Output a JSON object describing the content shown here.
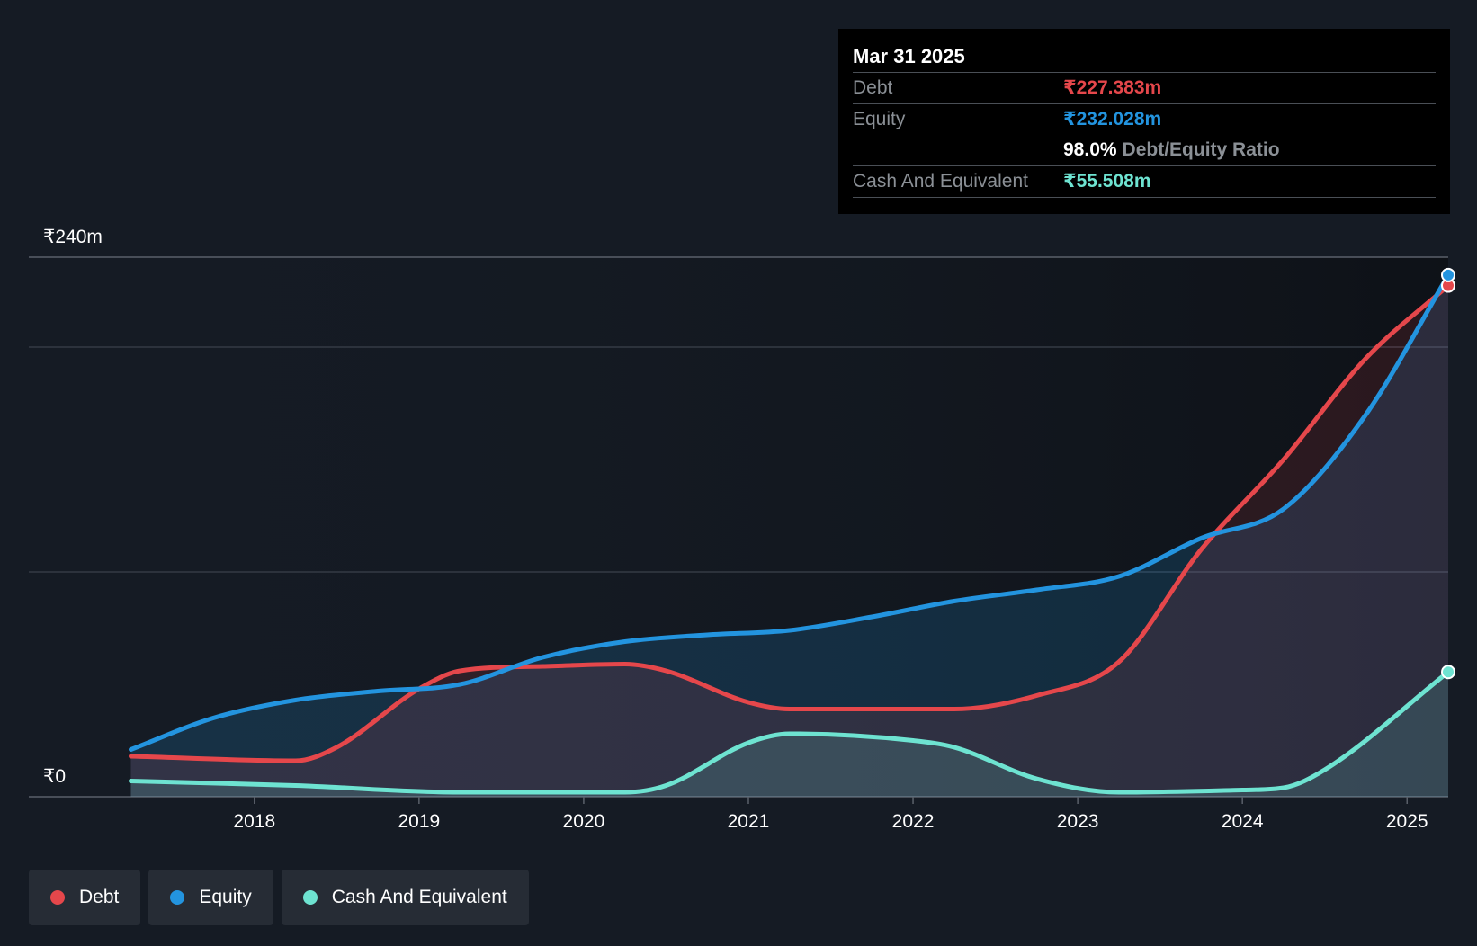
{
  "tooltip": {
    "date": "Mar 31 2025",
    "debt_label": "Debt",
    "debt_value": "₹227.383m",
    "equity_label": "Equity",
    "equity_value": "₹232.028m",
    "ratio_value": "98.0%",
    "ratio_label": "Debt/Equity Ratio",
    "cash_label": "Cash And Equivalent",
    "cash_value": "₹55.508m"
  },
  "legend": [
    {
      "label": "Debt",
      "color": "#e5474b"
    },
    {
      "label": "Equity",
      "color": "#2394df"
    },
    {
      "label": "Cash And Equivalent",
      "color": "#6ee3d1"
    }
  ],
  "colors": {
    "debt": "#e5474b",
    "equity": "#2394df",
    "cash": "#6ee3d1",
    "background": "#151b24"
  },
  "chart_data": {
    "type": "area",
    "title": "",
    "xlabel": "",
    "ylabel": "",
    "ylim": [
      0,
      240
    ],
    "y_ticks": [
      {
        "value": 240,
        "label": "₹240m"
      },
      {
        "value": 0,
        "label": "₹0"
      }
    ],
    "gridlines": [
      240,
      200,
      100,
      0
    ],
    "x_ticks": [
      {
        "value": 2018,
        "label": "2018"
      },
      {
        "value": 2019,
        "label": "2019"
      },
      {
        "value": 2020,
        "label": "2020"
      },
      {
        "value": 2021,
        "label": "2021"
      },
      {
        "value": 2022,
        "label": "2022"
      },
      {
        "value": 2023,
        "label": "2023"
      },
      {
        "value": 2024,
        "label": "2024"
      },
      {
        "value": 2025,
        "label": "2025"
      }
    ],
    "xlim": [
      2016.63,
      2025.25
    ],
    "series": [
      {
        "name": "Debt",
        "key": "debt",
        "points": [
          [
            2017.25,
            18
          ],
          [
            2018.25,
            16
          ],
          [
            2018.5,
            22
          ],
          [
            2019.0,
            48
          ],
          [
            2019.25,
            56
          ],
          [
            2019.75,
            58
          ],
          [
            2020.25,
            59
          ],
          [
            2020.5,
            56
          ],
          [
            2021.0,
            42
          ],
          [
            2021.25,
            39
          ],
          [
            2022.0,
            39
          ],
          [
            2022.25,
            39
          ],
          [
            2022.75,
            45
          ],
          [
            2023.25,
            60
          ],
          [
            2023.75,
            110
          ],
          [
            2024.25,
            150
          ],
          [
            2024.75,
            195
          ],
          [
            2025.25,
            227.383
          ]
        ]
      },
      {
        "name": "Equity",
        "key": "equity",
        "points": [
          [
            2017.25,
            21
          ],
          [
            2017.75,
            35
          ],
          [
            2018.25,
            43
          ],
          [
            2018.75,
            47
          ],
          [
            2019.25,
            50
          ],
          [
            2019.75,
            62
          ],
          [
            2020.25,
            69
          ],
          [
            2020.75,
            72
          ],
          [
            2021.25,
            74
          ],
          [
            2021.75,
            80
          ],
          [
            2022.25,
            87
          ],
          [
            2022.75,
            92
          ],
          [
            2023.25,
            98
          ],
          [
            2023.75,
            115
          ],
          [
            2024.25,
            128
          ],
          [
            2024.75,
            170
          ],
          [
            2025.25,
            232.028
          ]
        ]
      },
      {
        "name": "Cash And Equivalent",
        "key": "cash",
        "points": [
          [
            2017.25,
            7
          ],
          [
            2018.25,
            5
          ],
          [
            2019.25,
            2
          ],
          [
            2020.0,
            2
          ],
          [
            2020.25,
            2
          ],
          [
            2020.5,
            5
          ],
          [
            2021.0,
            24
          ],
          [
            2021.25,
            28
          ],
          [
            2022.0,
            25
          ],
          [
            2022.25,
            22
          ],
          [
            2022.75,
            8
          ],
          [
            2023.25,
            2
          ],
          [
            2024.0,
            3
          ],
          [
            2024.25,
            4
          ],
          [
            2024.5,
            12
          ],
          [
            2025.25,
            55.508
          ]
        ]
      }
    ]
  }
}
